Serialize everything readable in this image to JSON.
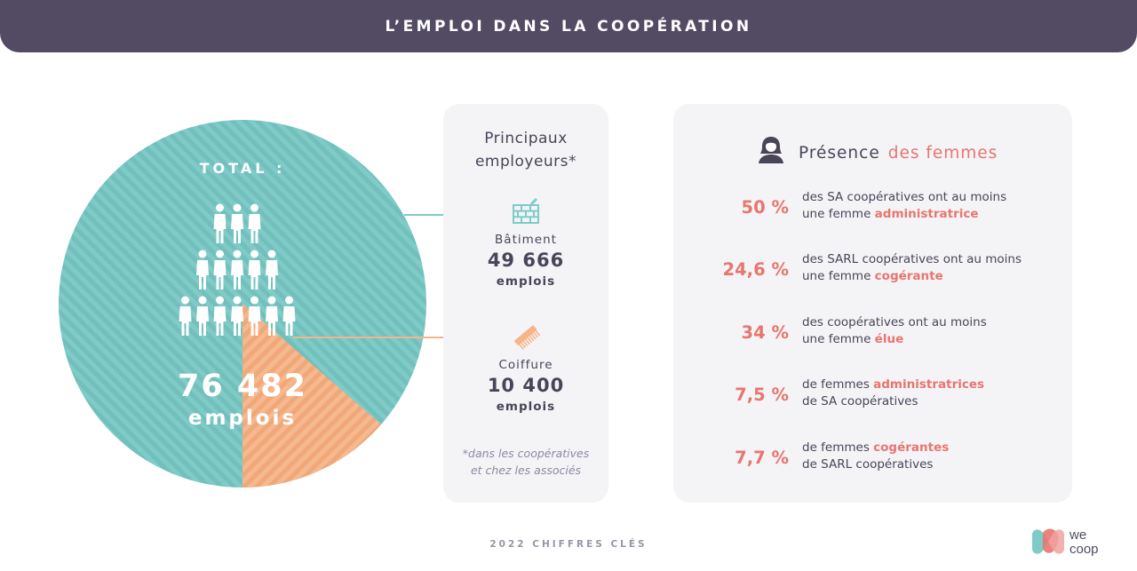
{
  "header": {
    "title": "L’EMPLOI DANS LA COOPÉRATION"
  },
  "total": {
    "label": "TOTAL :",
    "value": "76 482",
    "unit": "emplois"
  },
  "employers": {
    "title_line1": "Principaux",
    "title_line2": "employeurs*",
    "sectors": [
      {
        "name": "Bâtiment",
        "value": "49 666",
        "unit": "emplois",
        "icon": "brick-wall-icon"
      },
      {
        "name": "Coiffure",
        "value": "10 400",
        "unit": "emplois",
        "icon": "comb-icon"
      }
    ],
    "footnote_line1": "*dans les coopératives",
    "footnote_line2": "et chez les associés"
  },
  "women": {
    "title_part1": "Présence",
    "title_part2": "des femmes",
    "icon": "woman-avatar-icon",
    "rows": [
      {
        "pct": "50 %",
        "line1": "des SA coopératives ont au moins",
        "line2_pre": "une femme ",
        "line2_hl": "administratrice",
        "line2_post": ""
      },
      {
        "pct": "24,6 %",
        "line1": "des SARL coopératives ont au moins",
        "line2_pre": "une femme ",
        "line2_hl": "cogérante",
        "line2_post": ""
      },
      {
        "pct": "34 %",
        "line1": "des coopératives ont au moins",
        "line2_pre": "une femme ",
        "line2_hl": "élue",
        "line2_post": ""
      },
      {
        "pct": "7,5 %",
        "line1_pre": "de femmes ",
        "line1_hl": "administratrices",
        "line2": "de SA coopératives"
      },
      {
        "pct": "7,7 %",
        "line1_pre": "de femmes ",
        "line1_hl": "cogérantes",
        "line2": "de SARL coopératives"
      }
    ]
  },
  "footer": {
    "text": "2022 CHIFFRES CLÉS"
  },
  "logo": {
    "text_line1": "we",
    "text_line2": "coop"
  },
  "colors": {
    "teal": "#7ecbc8",
    "orange": "#f5b58a",
    "accent": "#e8756f",
    "dark": "#534b63"
  },
  "chart_data": {
    "type": "pie",
    "total": 76482,
    "slices": [
      {
        "label": "Bâtiment",
        "value": 49666,
        "color": "#7ecbc8"
      },
      {
        "label": "Coiffure",
        "value": 10400,
        "color": "#f5b58a"
      }
    ]
  }
}
